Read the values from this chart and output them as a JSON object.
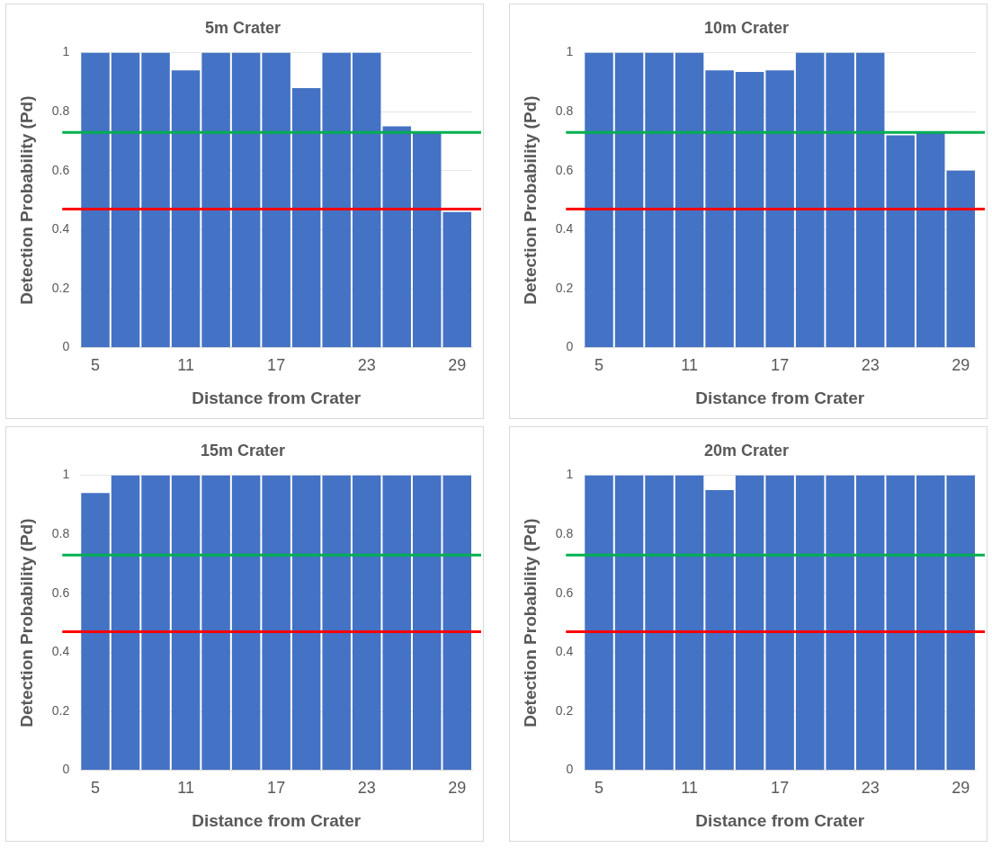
{
  "chart_data": [
    {
      "type": "bar",
      "title": "5m Crater",
      "xlabel": "Distance from Crater",
      "ylabel": "Detection Probability (Pd)",
      "categories": [
        "5",
        null,
        null,
        "11",
        null,
        null,
        "17",
        null,
        null,
        "23",
        null,
        null,
        "29"
      ],
      "values": [
        1,
        1,
        1,
        0.94,
        1,
        1,
        1,
        0.88,
        1,
        1,
        0.75,
        0.73,
        0.46
      ],
      "color": "#4472c4",
      "ylim": [
        0,
        1
      ],
      "yticks": [
        0,
        0.2,
        0.4,
        0.6,
        0.8,
        1
      ],
      "grid": "y",
      "legend": false,
      "ref_lines": [
        {
          "axis": "y",
          "value": 0.73,
          "color": "#00b050"
        },
        {
          "axis": "y",
          "value": 0.47,
          "color": "#ff0000"
        }
      ]
    },
    {
      "type": "bar",
      "title": "10m Crater",
      "xlabel": "Distance from Crater",
      "ylabel": "Detection Probability (Pd)",
      "categories": [
        "5",
        null,
        null,
        "11",
        null,
        null,
        "17",
        null,
        null,
        "23",
        null,
        null,
        "29"
      ],
      "values": [
        1,
        1,
        1,
        1,
        0.94,
        0.935,
        0.94,
        1,
        1,
        1,
        0.72,
        0.73,
        0.6
      ],
      "color": "#4472c4",
      "ylim": [
        0,
        1
      ],
      "yticks": [
        0,
        0.2,
        0.4,
        0.6,
        0.8,
        1
      ],
      "grid": "y",
      "legend": false,
      "ref_lines": [
        {
          "axis": "y",
          "value": 0.73,
          "color": "#00b050"
        },
        {
          "axis": "y",
          "value": 0.47,
          "color": "#ff0000"
        }
      ]
    },
    {
      "type": "bar",
      "title": "15m Crater",
      "xlabel": "Distance from Crater",
      "ylabel": "Detection Probability (Pd)",
      "categories": [
        "5",
        null,
        null,
        "11",
        null,
        null,
        "17",
        null,
        null,
        "23",
        null,
        null,
        "29"
      ],
      "values": [
        0.94,
        1,
        1,
        1,
        1,
        1,
        1,
        1,
        1,
        1,
        1,
        1,
        1
      ],
      "color": "#4472c4",
      "ylim": [
        0,
        1
      ],
      "yticks": [
        0,
        0.2,
        0.4,
        0.6,
        0.8,
        1
      ],
      "grid": "y",
      "legend": false,
      "ref_lines": [
        {
          "axis": "y",
          "value": 0.73,
          "color": "#00b050"
        },
        {
          "axis": "y",
          "value": 0.47,
          "color": "#ff0000"
        }
      ]
    },
    {
      "type": "bar",
      "title": "20m Crater",
      "xlabel": "Distance from Crater",
      "ylabel": "Detection Probability (Pd)",
      "categories": [
        "5",
        null,
        null,
        "11",
        null,
        null,
        "17",
        null,
        null,
        "23",
        null,
        null,
        "29"
      ],
      "values": [
        1,
        1,
        1,
        1,
        0.95,
        1,
        1,
        1,
        1,
        1,
        1,
        1,
        1
      ],
      "color": "#4472c4",
      "ylim": [
        0,
        1
      ],
      "yticks": [
        0,
        0.2,
        0.4,
        0.6,
        0.8,
        1
      ],
      "grid": "y",
      "legend": false,
      "ref_lines": [
        {
          "axis": "y",
          "value": 0.73,
          "color": "#00b050"
        },
        {
          "axis": "y",
          "value": 0.47,
          "color": "#ff0000"
        }
      ]
    }
  ]
}
